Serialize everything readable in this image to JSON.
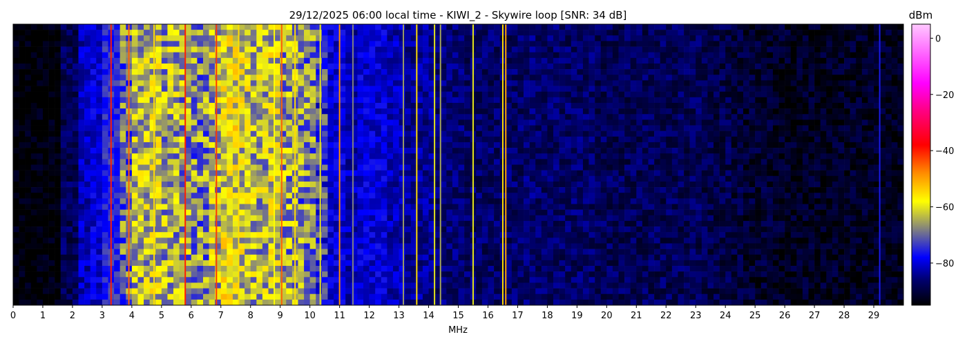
{
  "chart_data": {
    "type": "heatmap",
    "title": "29/12/2025 06:00 local time - KIWI_2 - Skywire loop [SNR: 34 dB]",
    "xlabel": "MHz",
    "ylabel": "",
    "xlim": [
      0,
      30
    ],
    "x_ticks": [
      "0",
      "1",
      "2",
      "3",
      "4",
      "5",
      "6",
      "7",
      "8",
      "9",
      "10",
      "11",
      "12",
      "13",
      "14",
      "15",
      "16",
      "17",
      "18",
      "19",
      "20",
      "21",
      "22",
      "23",
      "24",
      "25",
      "26",
      "27",
      "28",
      "29"
    ],
    "colorbar": {
      "label": "dBm",
      "range": [
        -95,
        5
      ],
      "ticks": [
        "0",
        "−20",
        "−40",
        "−60",
        "−80"
      ],
      "tick_values": [
        0,
        -20,
        -40,
        -60,
        -80
      ],
      "colormap_stops": [
        {
          "dbm": -95,
          "color": "#000000"
        },
        {
          "dbm": -86,
          "color": "#00006e"
        },
        {
          "dbm": -78,
          "color": "#0000ff"
        },
        {
          "dbm": -68,
          "color": "#808080"
        },
        {
          "dbm": -58,
          "color": "#ffff00"
        },
        {
          "dbm": -48,
          "color": "#ff8c00"
        },
        {
          "dbm": -38,
          "color": "#ff0000"
        },
        {
          "dbm": -26,
          "color": "#ff0080"
        },
        {
          "dbm": -16,
          "color": "#ff00ff"
        },
        {
          "dbm": 5,
          "color": "#ffc8ff"
        }
      ]
    },
    "band_profile_step_mhz": 0.5,
    "band_profile_dbm": [
      -95,
      -95,
      -95,
      -88,
      -82,
      -80,
      -75,
      -70,
      -64,
      -62,
      -65,
      -66,
      -68,
      -64,
      -60,
      -62,
      -64,
      -62,
      -66,
      -68,
      -74,
      -80,
      -82,
      -80,
      -80,
      -82,
      -84,
      -84,
      -86,
      -86,
      -87,
      -87,
      -87,
      -87,
      -86,
      -87,
      -87,
      -87,
      -87,
      -88,
      -88,
      -88,
      -88,
      -88,
      -88,
      -88,
      -89,
      -89,
      -90,
      -91,
      -91,
      -92,
      -92,
      -92,
      -92,
      -92,
      -92,
      -92,
      -92,
      -93
    ],
    "carriers": [
      {
        "mhz": 3.3,
        "dbm": -40
      },
      {
        "mhz": 3.9,
        "dbm": -45
      },
      {
        "mhz": 4.75,
        "dbm": -55
      },
      {
        "mhz": 5.8,
        "dbm": -40
      },
      {
        "mhz": 6.85,
        "dbm": -42
      },
      {
        "mhz": 7.6,
        "dbm": -55
      },
      {
        "mhz": 8.8,
        "dbm": -58
      },
      {
        "mhz": 9.05,
        "dbm": -45
      },
      {
        "mhz": 9.5,
        "dbm": -55
      },
      {
        "mhz": 10.35,
        "dbm": -60
      },
      {
        "mhz": 11.0,
        "dbm": -48
      },
      {
        "mhz": 11.45,
        "dbm": -68
      },
      {
        "mhz": 13.15,
        "dbm": -66
      },
      {
        "mhz": 13.6,
        "dbm": -55
      },
      {
        "mhz": 14.2,
        "dbm": -60
      },
      {
        "mhz": 14.4,
        "dbm": -65
      },
      {
        "mhz": 15.5,
        "dbm": -60
      },
      {
        "mhz": 16.5,
        "dbm": -55
      },
      {
        "mhz": 16.6,
        "dbm": -50
      },
      {
        "mhz": 29.2,
        "dbm": -76
      }
    ]
  }
}
